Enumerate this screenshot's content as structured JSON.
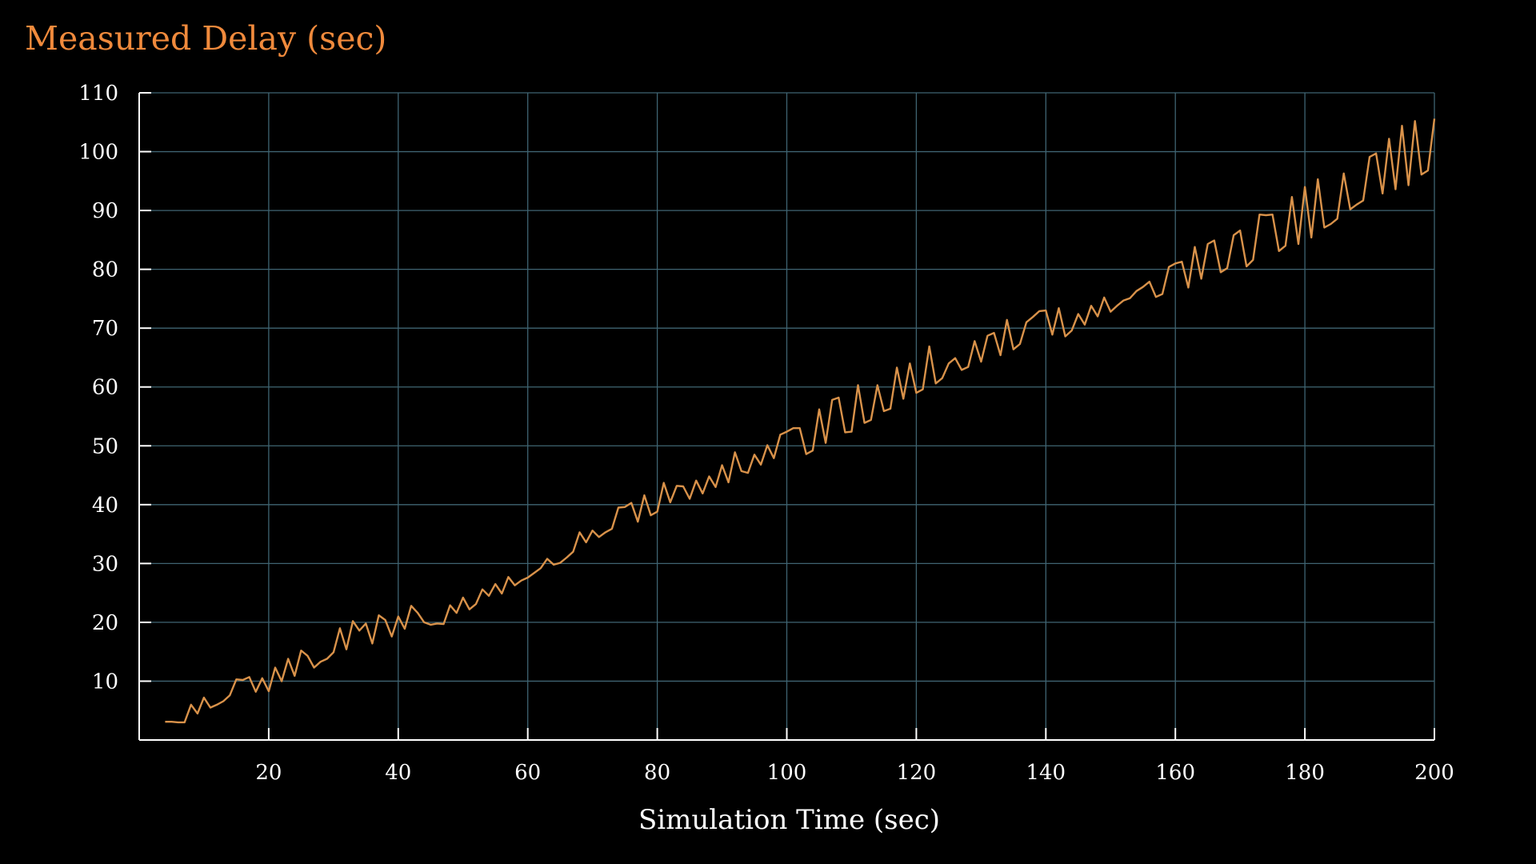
{
  "chart_data": {
    "type": "line",
    "title": "Measured Delay (sec)",
    "xlabel": "Simulation Time (sec)",
    "ylabel": "",
    "xlim": [
      0,
      200
    ],
    "ylim": [
      0,
      110
    ],
    "xticks": [
      20,
      40,
      60,
      80,
      100,
      120,
      140,
      160,
      180,
      200
    ],
    "yticks": [
      10,
      20,
      30,
      40,
      50,
      60,
      70,
      80,
      90,
      100,
      110
    ],
    "grid": true,
    "colors": {
      "background": "#000000",
      "title": "#f08a3c",
      "line": "#d9924a",
      "grid": "#3f6472",
      "axis": "#ffffff",
      "text": "#ffffff"
    },
    "series": [
      {
        "x": [
          4,
          5,
          6,
          7,
          8,
          9,
          10,
          11,
          12,
          13,
          14,
          15,
          16,
          17,
          18,
          19,
          20,
          21,
          22,
          23,
          24,
          25,
          26,
          27,
          28,
          29,
          30,
          31,
          32,
          33,
          34,
          35,
          36,
          37,
          38,
          39,
          40,
          41,
          42,
          43,
          44,
          45,
          46,
          47,
          48,
          49,
          50,
          51,
          52,
          53,
          54,
          55,
          56,
          57,
          58,
          59,
          60,
          61,
          62,
          63,
          64,
          65,
          66,
          67,
          68,
          69,
          70,
          71,
          72,
          73,
          74,
          75,
          76,
          77,
          78,
          79,
          80,
          81,
          82,
          83,
          84,
          85,
          86,
          87,
          88,
          89,
          90,
          91,
          92,
          93,
          94,
          95,
          96,
          97,
          98,
          99,
          100,
          101,
          102,
          103,
          104,
          105,
          106,
          107,
          108,
          109,
          110,
          111,
          112,
          113,
          114,
          115,
          116,
          117,
          118,
          119,
          120,
          121,
          122,
          123,
          124,
          125,
          126,
          127,
          128,
          129,
          130,
          131,
          132,
          133,
          134,
          135,
          136,
          137,
          138,
          139,
          140,
          141,
          142,
          143,
          144,
          145,
          146,
          147,
          148,
          149,
          150,
          151,
          152,
          153,
          154,
          155,
          156,
          157,
          158,
          159,
          160,
          161,
          162,
          163,
          164,
          165,
          166,
          167,
          168,
          169,
          170,
          171,
          172,
          173,
          174,
          175,
          176,
          177,
          178,
          179,
          180,
          181,
          182,
          183,
          184,
          185,
          186,
          187,
          188,
          189,
          190,
          191,
          192,
          193,
          194,
          195,
          196,
          197,
          198,
          199,
          200
        ],
        "y": [
          3.1,
          3.1,
          3.0,
          3.0,
          6.0,
          4.5,
          7.2,
          5.5,
          6.0,
          6.6,
          7.6,
          10.3,
          10.2,
          10.7,
          8.2,
          10.5,
          8.3,
          12.3,
          10.0,
          13.8,
          10.9,
          15.2,
          14.3,
          12.3,
          13.3,
          13.8,
          14.9,
          19.0,
          15.4,
          20.2,
          18.6,
          19.8,
          16.4,
          21.2,
          20.4,
          17.6,
          21.0,
          18.9,
          22.8,
          21.6,
          20.0,
          19.6,
          19.8,
          19.7,
          22.9,
          21.6,
          24.2,
          22.2,
          23.1,
          25.6,
          24.5,
          26.5,
          24.9,
          27.7,
          26.3,
          27.1,
          27.6,
          28.4,
          29.2,
          30.8,
          29.8,
          30.1,
          31.0,
          32.0,
          35.3,
          33.6,
          35.6,
          34.5,
          35.3,
          35.9,
          39.5,
          39.6,
          40.3,
          37.1,
          41.6,
          38.2,
          38.8,
          43.7,
          40.4,
          43.2,
          43.1,
          41.0,
          44.1,
          41.9,
          44.8,
          43.0,
          46.7,
          43.8,
          48.9,
          45.7,
          45.4,
          48.5,
          46.8,
          50.1,
          47.9,
          51.9,
          52.4,
          53.0,
          53.0,
          48.6,
          49.2,
          56.2,
          50.5,
          57.8,
          58.2,
          52.3,
          52.4,
          60.3,
          53.9,
          54.4,
          60.3,
          55.9,
          56.3,
          63.3,
          58.0,
          64.0,
          59.0,
          59.6,
          66.9,
          60.6,
          61.5,
          64.0,
          64.9,
          62.9,
          63.4,
          67.8,
          64.3,
          68.7,
          69.2,
          65.4,
          71.4,
          66.4,
          67.3,
          71.0,
          71.9,
          72.9,
          73.0,
          68.9,
          73.4,
          68.6,
          69.6,
          72.4,
          70.6,
          73.8,
          72.0,
          75.2,
          72.8,
          73.8,
          74.7,
          75.1,
          76.3,
          77.0,
          77.9,
          75.3,
          75.8,
          80.4,
          81.0,
          81.3,
          76.9,
          83.8,
          78.4,
          84.3,
          84.9,
          79.5,
          80.2,
          85.8,
          86.6,
          80.5,
          81.6,
          89.3,
          89.2,
          89.3,
          83.1,
          84.0,
          92.3,
          84.3,
          94.0,
          85.4,
          95.3,
          87.1,
          87.7,
          88.6,
          96.3,
          90.2,
          91.0,
          91.7,
          99.1,
          99.7,
          92.9,
          102.2,
          93.6,
          104.4,
          94.3,
          105.2,
          96.1,
          96.8,
          105.6
        ]
      }
    ]
  }
}
